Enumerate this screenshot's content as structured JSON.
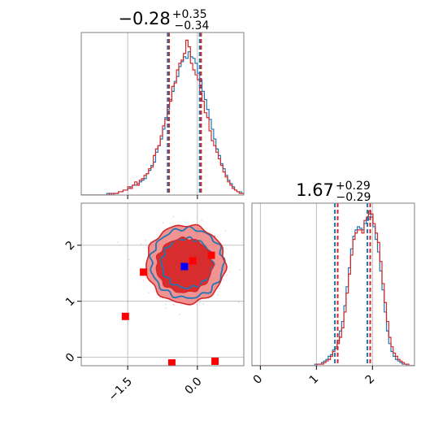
{
  "chart_data": [
    {
      "type": "histogram",
      "panel": "top-left",
      "title_main": "−0.28",
      "title_sup": "+0.35",
      "title_sub": "−0.34",
      "xlim": [
        -2.5,
        1.0
      ],
      "grid": true,
      "vlines": {
        "blue": [
          -0.64,
          0.05
        ],
        "red": [
          -0.61,
          0.08
        ]
      },
      "series": [
        {
          "color": "#1f77b4",
          "bin_start": -2.5,
          "bin_width": 0.05,
          "values": [
            0,
            0,
            0,
            0,
            0,
            0,
            0,
            0,
            0,
            0,
            0,
            1,
            0,
            1,
            1,
            1,
            2,
            2,
            3,
            3,
            4,
            5,
            6,
            6,
            7,
            8,
            9,
            10,
            13,
            15,
            18,
            20,
            26,
            30,
            34,
            40,
            47,
            52,
            58,
            63,
            69,
            72,
            78,
            81,
            84,
            83,
            87,
            84,
            83,
            80,
            74,
            70,
            63,
            58,
            52,
            46,
            40,
            34,
            28,
            24,
            19,
            16,
            12,
            9,
            7,
            5,
            3,
            2,
            2,
            1,
            1,
            0
          ]
        },
        {
          "color": "#d62728",
          "bin_start": -2.5,
          "bin_width": 0.05,
          "values": [
            0,
            0,
            0,
            0,
            0,
            0,
            0,
            0,
            0,
            0,
            0,
            0,
            1,
            0,
            1,
            1,
            2,
            2,
            3,
            3,
            5,
            4,
            6,
            8,
            6,
            9,
            10,
            12,
            13,
            16,
            17,
            24,
            28,
            30,
            36,
            42,
            46,
            55,
            57,
            66,
            68,
            76,
            80,
            82,
            86,
            94,
            90,
            80,
            76,
            73,
            70,
            62,
            57,
            50,
            47,
            39,
            33,
            30,
            26,
            22,
            18,
            14,
            11,
            8,
            6,
            4,
            3,
            2,
            1,
            1,
            0,
            0
          ]
        }
      ]
    },
    {
      "type": "scatter",
      "panel": "bottom-left",
      "xlim": [
        -2.5,
        1.0
      ],
      "ylim": [
        -0.15,
        2.75
      ],
      "xticks": [
        "−1.5",
        "0.0"
      ],
      "yticks": [
        "0",
        "1",
        "2"
      ],
      "grid": true,
      "contours": {
        "blue_outer": {
          "cx": -0.22,
          "cy": 1.68,
          "rx": 0.78,
          "ry": 0.62
        },
        "blue_inner": {
          "cx": -0.22,
          "cy": 1.68,
          "rx": 0.55,
          "ry": 0.44
        },
        "red_outer": {
          "cx": -0.25,
          "cy": 1.66,
          "rx": 0.85,
          "ry": 0.7
        },
        "red_inner": {
          "cx": -0.28,
          "cy": 1.64,
          "rx": 0.6,
          "ry": 0.48
        }
      },
      "markers": {
        "red": [
          [
            -1.16,
            1.52
          ],
          [
            -0.1,
            1.72
          ],
          [
            0.3,
            1.82
          ],
          [
            -1.55,
            0.73
          ],
          [
            -0.55,
            -0.1
          ],
          [
            0.38,
            -0.07
          ]
        ],
        "blue": [
          [
            -0.28,
            1.62
          ]
        ]
      }
    },
    {
      "type": "histogram",
      "panel": "bottom-right",
      "title_main": "1.67",
      "title_sup": "+0.29",
      "title_sub": "−0.29",
      "xlim": [
        -0.15,
        2.75
      ],
      "xticks": [
        "0",
        "1",
        "2"
      ],
      "grid": true,
      "vlines": {
        "blue": [
          1.33,
          1.91
        ],
        "red": [
          1.38,
          1.96
        ]
      },
      "series": [
        {
          "color": "#1f77b4",
          "bin_start": -0.15,
          "bin_width": 0.04,
          "values": [
            0,
            0,
            0,
            0,
            0,
            0,
            0,
            0,
            0,
            0,
            0,
            0,
            0,
            0,
            0,
            0,
            0,
            0,
            0,
            0,
            0,
            0,
            0,
            0,
            0,
            0,
            0,
            0,
            1,
            1,
            1,
            2,
            3,
            4,
            6,
            7,
            10,
            12,
            16,
            22,
            28,
            38,
            50,
            62,
            74,
            82,
            86,
            88,
            87,
            86,
            90,
            92,
            96,
            94,
            88,
            80,
            72,
            60,
            48,
            34,
            22,
            14,
            9,
            6,
            4,
            3,
            2,
            1,
            1,
            0,
            0,
            0,
            0
          ]
        },
        {
          "color": "#d62728",
          "bin_start": -0.15,
          "bin_width": 0.04,
          "values": [
            0,
            0,
            0,
            0,
            0,
            0,
            0,
            0,
            0,
            0,
            0,
            0,
            0,
            0,
            0,
            0,
            0,
            0,
            0,
            0,
            0,
            0,
            0,
            0,
            0,
            0,
            0,
            0,
            0,
            1,
            1,
            1,
            2,
            3,
            4,
            6,
            9,
            11,
            14,
            18,
            24,
            34,
            46,
            58,
            70,
            80,
            84,
            86,
            86,
            84,
            92,
            94,
            98,
            96,
            90,
            84,
            78,
            66,
            52,
            40,
            28,
            18,
            12,
            8,
            6,
            4,
            3,
            2,
            1,
            1,
            0,
            0,
            0
          ]
        }
      ]
    }
  ]
}
